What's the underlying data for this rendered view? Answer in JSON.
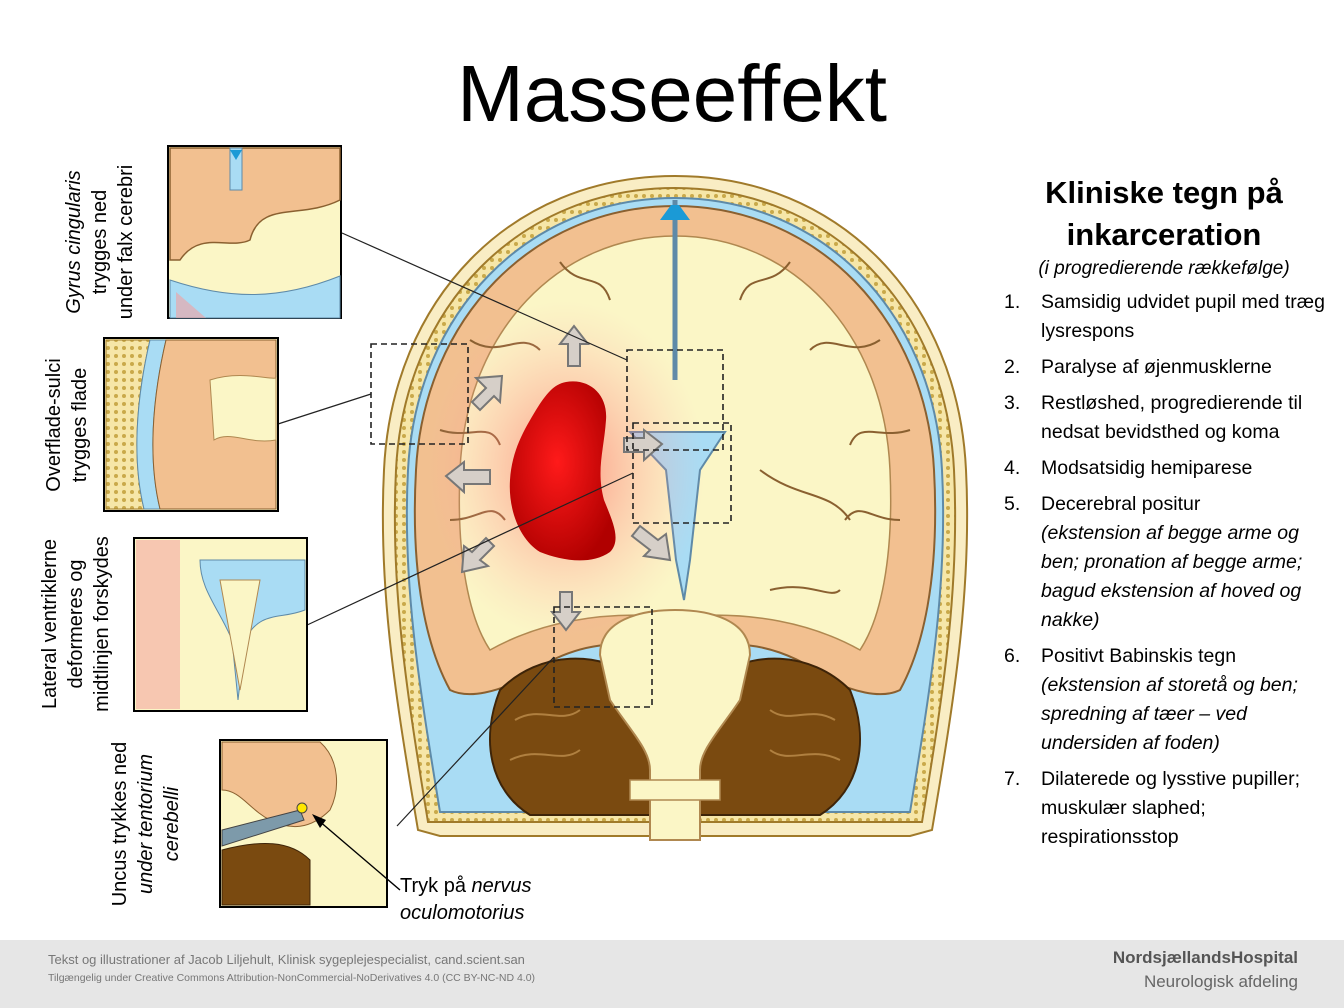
{
  "title": "Masseeffekt",
  "insets": [
    {
      "label_lines": [
        "Gyrus cingularis",
        "trygges ned",
        "under falx cerebri"
      ]
    },
    {
      "label_lines": [
        "Overflade-sulci",
        "trygges flade"
      ]
    },
    {
      "label_lines": [
        "Lateral ventriklerne",
        "deformeres og",
        "midtlinjen forskydes"
      ]
    },
    {
      "label_lines": [
        "Uncus trykkes ned",
        "under tentorium",
        "cerebelli"
      ]
    }
  ],
  "nerve_note": {
    "line1": "Tryk på ",
    "line1_italic": "nervus",
    "line2": "oculomotorius"
  },
  "clinical_signs": {
    "heading_line1": "Kliniske tegn på",
    "heading_line2": "inkarceration",
    "subheading": "(i progredierende rækkefølge)",
    "items": [
      {
        "num": "1.",
        "text": "Samsidig udvidet pupil med træg lysrespons",
        "detail": ""
      },
      {
        "num": "2.",
        "text": "Paralyse af øjenmusklerne",
        "detail": ""
      },
      {
        "num": "3.",
        "text": "Restløshed, progredierende til nedsat bevidsthed og koma",
        "detail": ""
      },
      {
        "num": "4.",
        "text": "Modsatsidig hemiparese",
        "detail": ""
      },
      {
        "num": "5.",
        "text": "Decerebral positur",
        "detail": "(ekstension af begge arme og ben; pronation af begge arme; bagud ekstension af hoved og nakke)"
      },
      {
        "num": "6.",
        "text": "Positivt Babinskis tegn",
        "detail": "(ekstension af storetå og ben; spredning af tæer – ved undersiden af foden)"
      },
      {
        "num": "7.",
        "text": "Dilaterede og lysstive pupiller; muskulær slaphed; respirationsstop",
        "detail": ""
      }
    ]
  },
  "footer": {
    "credit_line1": "Tekst og illustrationer af Jacob Liljehult, Klinisk sygeplejespecialist, cand.scient.san",
    "credit_line2": "Tilgængelig under Creative Commons Attribution-NonCommercial-NoDerivatives 4.0 (CC BY-NC-ND  4.0)",
    "organization": "NordsjællandsHospital",
    "department": "Neurologisk afdeling"
  },
  "colors": {
    "cortex": "#f2c090",
    "white_matter": "#fbf6c6",
    "csf": "#a9dcf4",
    "ventricle_blue": "#1b9ad6",
    "cerebellum": "#7a4a10",
    "skull": "#f6e6a8",
    "mass": "#d20000"
  }
}
